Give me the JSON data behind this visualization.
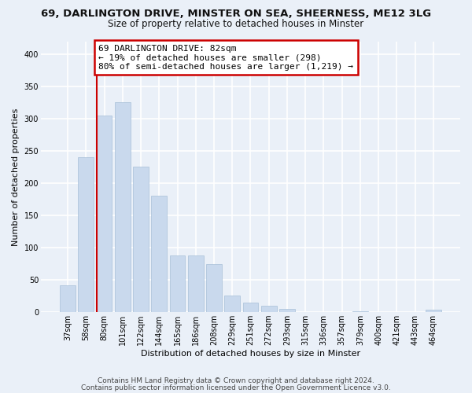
{
  "title_line1": "69, DARLINGTON DRIVE, MINSTER ON SEA, SHEERNESS, ME12 3LG",
  "title_line2": "Size of property relative to detached houses in Minster",
  "xlabel": "Distribution of detached houses by size in Minster",
  "ylabel": "Number of detached properties",
  "categories": [
    "37sqm",
    "58sqm",
    "80sqm",
    "101sqm",
    "122sqm",
    "144sqm",
    "165sqm",
    "186sqm",
    "208sqm",
    "229sqm",
    "251sqm",
    "272sqm",
    "293sqm",
    "315sqm",
    "336sqm",
    "357sqm",
    "379sqm",
    "400sqm",
    "421sqm",
    "443sqm",
    "464sqm"
  ],
  "values": [
    42,
    240,
    305,
    325,
    226,
    180,
    88,
    88,
    74,
    26,
    15,
    10,
    5,
    0,
    0,
    0,
    2,
    0,
    0,
    0,
    4
  ],
  "bar_color": "#c9d9ed",
  "bar_edge_color": "#a8c0d8",
  "annotation_box_text": "69 DARLINGTON DRIVE: 82sqm\n← 19% of detached houses are smaller (298)\n80% of semi-detached houses are larger (1,219) →",
  "annotation_box_color": "#ffffff",
  "annotation_box_edge_color": "#cc0000",
  "vline_color": "#cc0000",
  "ylim": [
    0,
    420
  ],
  "yticks": [
    0,
    50,
    100,
    150,
    200,
    250,
    300,
    350,
    400
  ],
  "footer_line1": "Contains HM Land Registry data © Crown copyright and database right 2024.",
  "footer_line2": "Contains public sector information licensed under the Open Government Licence v3.0.",
  "background_color": "#eaf0f8",
  "plot_bg_color": "#eaf0f8",
  "grid_color": "#ffffff",
  "title_fontsize": 9.5,
  "subtitle_fontsize": 8.5,
  "axis_label_fontsize": 8,
  "tick_fontsize": 7,
  "annotation_fontsize": 8,
  "footer_fontsize": 6.5
}
